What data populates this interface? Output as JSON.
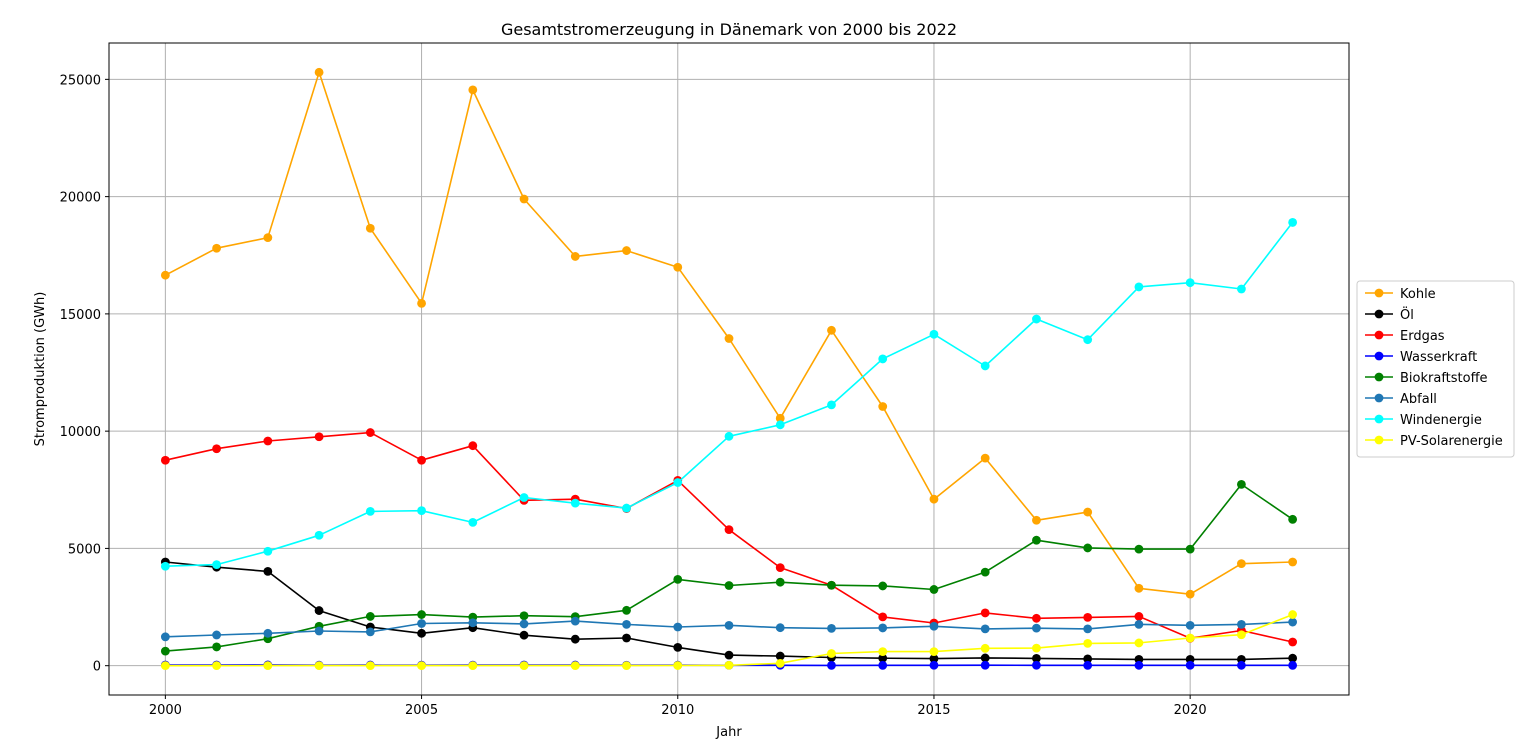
{
  "chart_data": {
    "type": "line",
    "title": "Gesamtstromerzeugung in Dänemark von 2000 bis 2022",
    "xlabel": "Jahr",
    "ylabel": "Stromproduktion (GWh)",
    "x": [
      2000,
      2001,
      2002,
      2003,
      2004,
      2005,
      2006,
      2007,
      2008,
      2009,
      2010,
      2011,
      2012,
      2013,
      2014,
      2015,
      2016,
      2017,
      2018,
      2019,
      2020,
      2021,
      2022
    ],
    "xlim": [
      1998.9,
      2023.1
    ],
    "ylim": [
      -1250,
      26550
    ],
    "xticks": [
      2000,
      2005,
      2010,
      2015,
      2020
    ],
    "yticks": [
      0,
      5000,
      10000,
      15000,
      20000,
      25000
    ],
    "grid": true,
    "legend_position": "center-right-outside",
    "series": [
      {
        "name": "Kohle",
        "color": "#ffa500",
        "values": [
          16650,
          17800,
          18250,
          25300,
          18650,
          15450,
          24550,
          19900,
          17450,
          17700,
          16990,
          13950,
          10550,
          14300,
          11050,
          7100,
          8850,
          6200,
          6550,
          3300,
          3050,
          4350,
          4420
        ]
      },
      {
        "name": "Öl",
        "color": "#000000",
        "values": [
          4420,
          4200,
          4020,
          2350,
          1650,
          1380,
          1620,
          1300,
          1130,
          1180,
          780,
          450,
          410,
          350,
          320,
          300,
          330,
          310,
          290,
          270,
          270,
          270,
          320
        ]
      },
      {
        "name": "Erdgas",
        "color": "#ff0000",
        "values": [
          8760,
          9250,
          9580,
          9760,
          9940,
          8760,
          9380,
          7050,
          7100,
          6700,
          7900,
          5800,
          4180,
          3430,
          2080,
          1820,
          2250,
          2020,
          2060,
          2100,
          1170,
          1500,
          1010
        ]
      },
      {
        "name": "Wasserkraft",
        "color": "#0000ff",
        "values": [
          30,
          30,
          32,
          21,
          27,
          22,
          23,
          28,
          26,
          19,
          21,
          17,
          17,
          14,
          15,
          18,
          19,
          18,
          15,
          16,
          17,
          16,
          15
        ]
      },
      {
        "name": "Biokraftstoffe",
        "color": "#008000",
        "values": [
          620,
          800,
          1150,
          1680,
          2100,
          2180,
          2070,
          2130,
          2090,
          2360,
          3680,
          3420,
          3560,
          3430,
          3400,
          3250,
          3990,
          5350,
          5020,
          4970,
          4970,
          7730,
          6240
        ]
      },
      {
        "name": "Abfall",
        "color": "#1f77b4",
        "values": [
          1230,
          1310,
          1380,
          1480,
          1440,
          1800,
          1830,
          1780,
          1900,
          1760,
          1650,
          1720,
          1620,
          1590,
          1610,
          1680,
          1570,
          1600,
          1570,
          1760,
          1720,
          1760,
          1860
        ]
      },
      {
        "name": "Windenergie",
        "color": "#00ffff",
        "values": [
          4240,
          4310,
          4880,
          5560,
          6580,
          6610,
          6110,
          7170,
          6930,
          6720,
          7810,
          9780,
          10270,
          11120,
          13080,
          14130,
          12780,
          14780,
          13900,
          16150,
          16330,
          16060,
          18900
        ]
      },
      {
        "name": "PV-Solarenergie",
        "color": "#ffff00",
        "values": [
          1,
          1,
          2,
          2,
          2,
          2,
          2,
          2,
          2,
          3,
          6,
          17,
          100,
          520,
          600,
          600,
          740,
          750,
          950,
          970,
          1180,
          1320,
          2180
        ]
      }
    ]
  }
}
